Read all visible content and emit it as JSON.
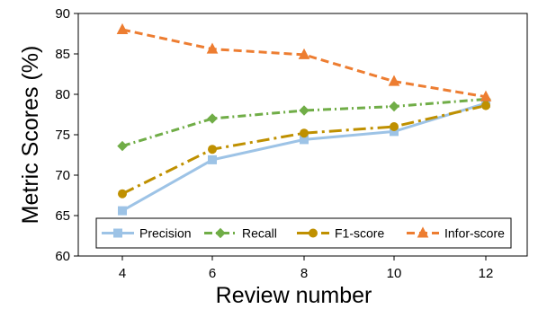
{
  "chart_data": {
    "type": "line",
    "x": [
      4,
      6,
      8,
      10,
      12
    ],
    "xlabel": "Review number",
    "ylabel": "Metric Scores (%)",
    "ylim": [
      60,
      90
    ],
    "yticks": [
      60,
      65,
      70,
      75,
      80,
      85,
      90
    ],
    "xticks": [
      4,
      6,
      8,
      10,
      12
    ],
    "grid": false,
    "legend_position": "bottom",
    "series": [
      {
        "name": "Precision",
        "color": "#9DC3E6",
        "marker": "square",
        "dash": "solid",
        "values": [
          65.6,
          71.9,
          74.4,
          75.4,
          78.9
        ]
      },
      {
        "name": "Recall",
        "color": "#70AD47",
        "marker": "diamond",
        "dash": "dashdot",
        "values": [
          73.6,
          77.0,
          78.0,
          78.5,
          79.4
        ]
      },
      {
        "name": "F1-score",
        "color": "#BF9000",
        "marker": "circle",
        "dash": "longdashdot",
        "values": [
          67.7,
          73.2,
          75.2,
          76.0,
          78.6
        ]
      },
      {
        "name": "Infor-score",
        "color": "#ED7D31",
        "marker": "triangle",
        "dash": "dash",
        "values": [
          88.0,
          85.6,
          84.9,
          81.6,
          79.7
        ]
      }
    ]
  }
}
